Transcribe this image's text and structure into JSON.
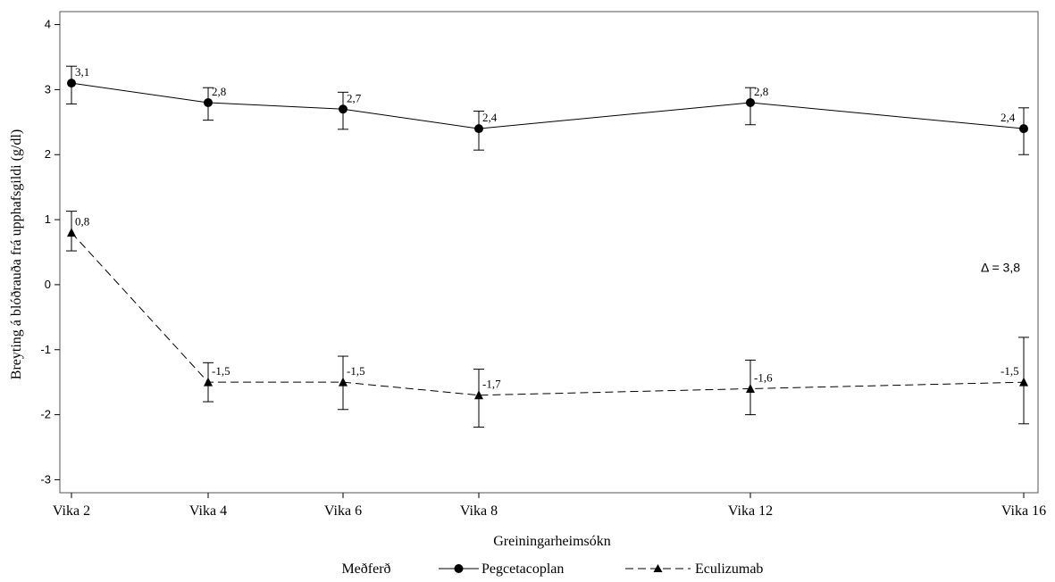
{
  "chart_data": {
    "type": "line",
    "categories": [
      "Vika 2",
      "Vika 4",
      "Vika 6",
      "Vika 8",
      "Vika 12",
      "Vika 16"
    ],
    "x": [
      2,
      4,
      6,
      8,
      12,
      16
    ],
    "xlabel": "Greiningarheimsókn",
    "ylabel": "Breyting á blóðrauða frá upphafsgildi (g/dl)",
    "ylim": [
      -3.2,
      4.2
    ],
    "yticks": [
      -3,
      -2,
      -1,
      0,
      1,
      2,
      3,
      4
    ],
    "ytick_labels": [
      "-3",
      "-2",
      "-1",
      "0",
      "1",
      "2",
      "3",
      "4"
    ],
    "grid": false,
    "legend": {
      "placement": "bottom",
      "title": "Meðferð"
    },
    "series": [
      {
        "name": "Pegcetacoplan",
        "marker": "circle",
        "line_style": "solid",
        "color": "#000000",
        "values": [
          3.1,
          2.8,
          2.7,
          2.4,
          2.8,
          2.4
        ],
        "labels": [
          "3,1",
          "2,8",
          "2,7",
          "2,4",
          "2,8",
          "2,4"
        ],
        "error_low": [
          2.78,
          2.53,
          2.39,
          2.07,
          2.46,
          2.0
        ],
        "error_high": [
          3.36,
          3.03,
          2.96,
          2.67,
          3.03,
          2.72
        ]
      },
      {
        "name": "Eculizumab",
        "marker": "triangle",
        "line_style": "dashed",
        "color": "#000000",
        "values": [
          0.8,
          -1.5,
          -1.5,
          -1.7,
          -1.6,
          -1.5
        ],
        "labels": [
          "0,8",
          "-1,5",
          "-1,5",
          "-1,7",
          "-1,6",
          "-1,5"
        ],
        "error_low": [
          0.52,
          -1.8,
          -1.92,
          -2.19,
          -2.0,
          -2.14
        ],
        "error_high": [
          1.13,
          -1.2,
          -1.1,
          -1.3,
          -1.16,
          -0.81
        ]
      }
    ],
    "annotations": [
      {
        "text": "Δ = 3,8",
        "x": 16,
        "y": 0.5
      }
    ]
  }
}
